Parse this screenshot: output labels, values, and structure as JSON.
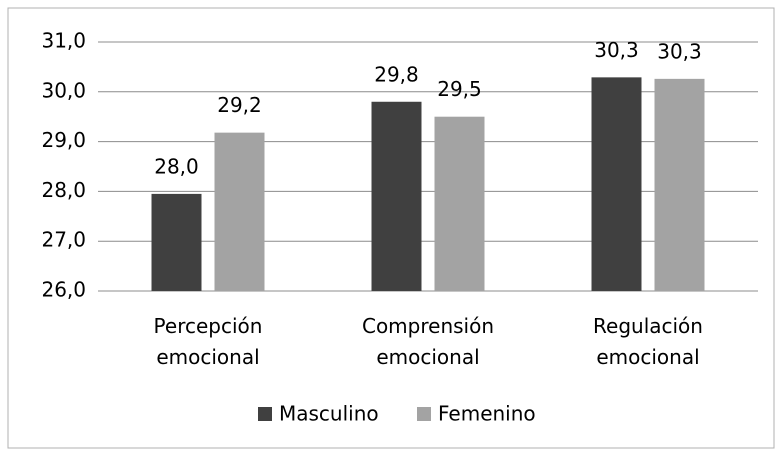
{
  "chart_data": {
    "type": "bar",
    "categories": [
      "Percepción emocional",
      "Comprensión emocional",
      "Regulación emocional"
    ],
    "series": [
      {
        "name": "Masculino",
        "color": "#404040",
        "values": [
          27.95,
          29.8,
          30.29
        ],
        "value_labels": [
          "28,0",
          "29,8",
          "30,3"
        ]
      },
      {
        "name": "Femenino",
        "color": "#a3a3a3",
        "values": [
          29.18,
          29.5,
          30.26
        ],
        "value_labels": [
          "29,2",
          "29,5",
          "30,3"
        ]
      }
    ],
    "ylim": [
      26,
      31
    ],
    "yticks": [
      {
        "value": 26,
        "label": "26,0"
      },
      {
        "value": 27,
        "label": "27,0"
      },
      {
        "value": 28,
        "label": "28,0"
      },
      {
        "value": 29,
        "label": "29,0"
      },
      {
        "value": 30,
        "label": "30,0"
      },
      {
        "value": 31,
        "label": "31,0"
      }
    ],
    "grid": true,
    "legend": "bottom"
  }
}
